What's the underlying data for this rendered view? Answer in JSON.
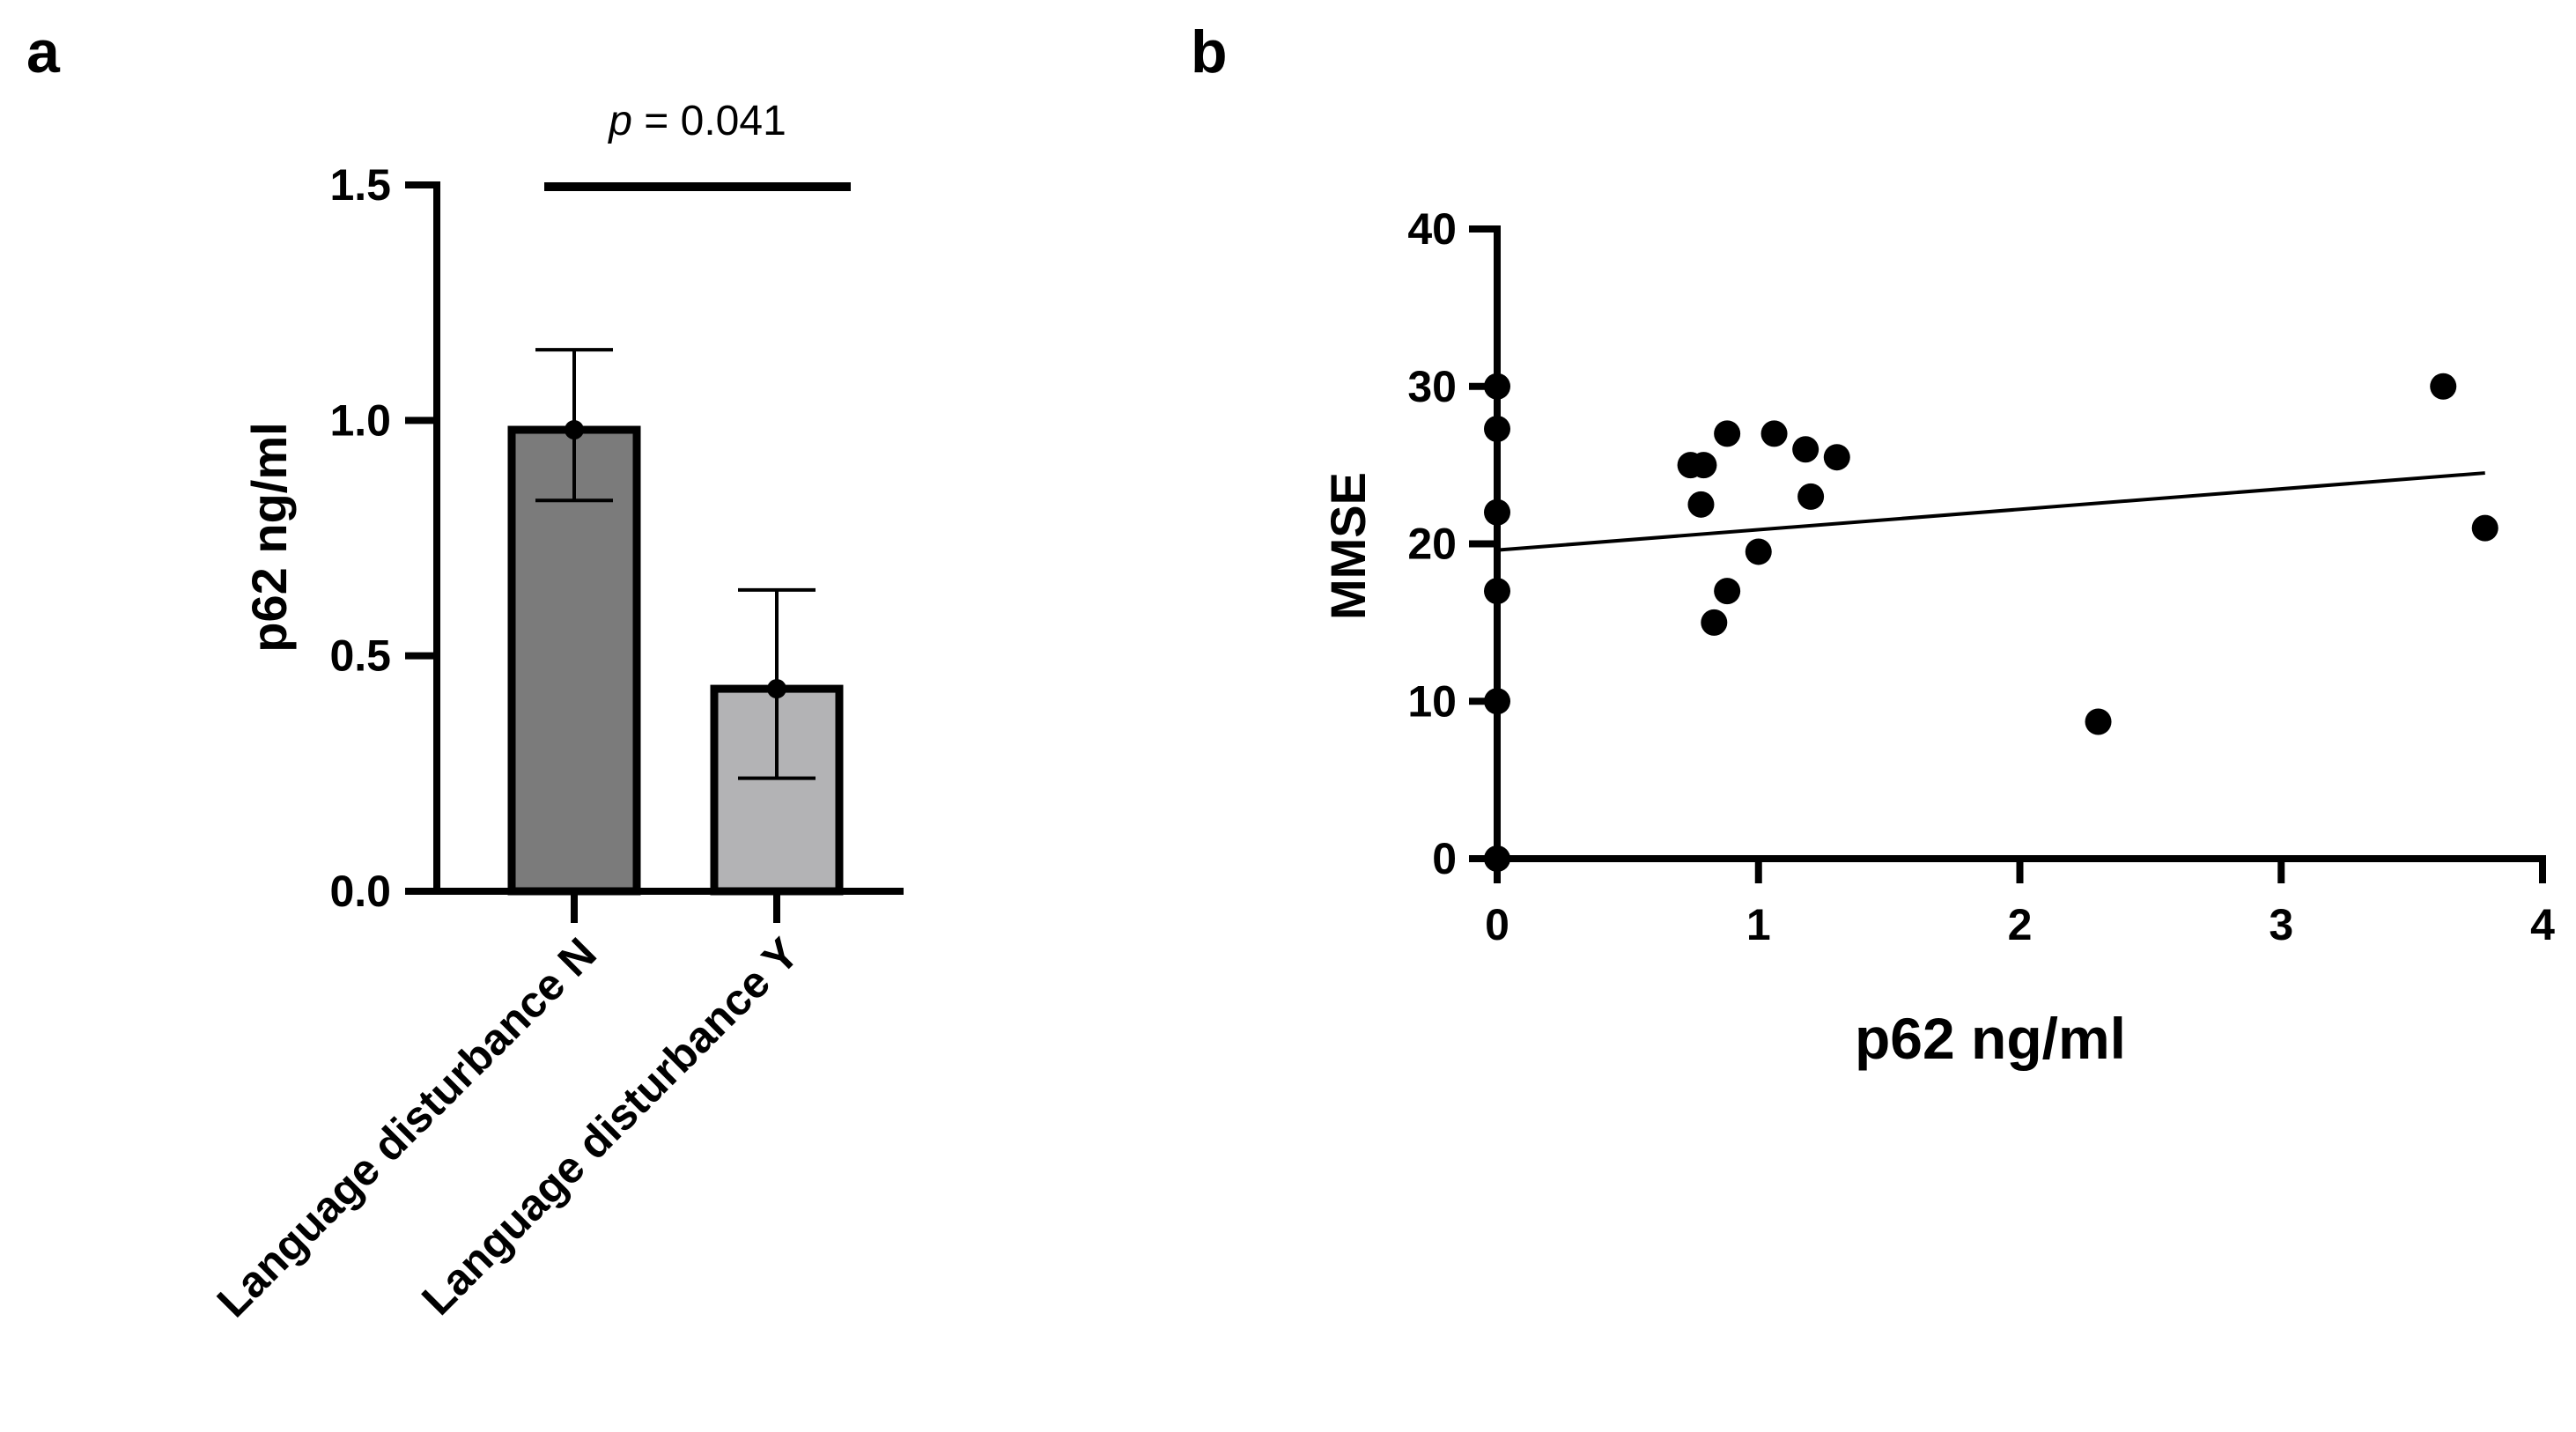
{
  "chart_data": [
    {
      "panel": "a",
      "type": "bar",
      "title": "",
      "xlabel": "",
      "ylabel": "p62 ng/ml",
      "ylim": [
        0,
        1.5
      ],
      "yticks": [
        0.0,
        0.5,
        1.0,
        1.5
      ],
      "ytick_labels": [
        "0.0",
        "0.5",
        "1.0",
        "1.5"
      ],
      "categories": [
        "Language disturbance N",
        "Language disturbance Y"
      ],
      "values": [
        0.98,
        0.43
      ],
      "errors": [
        {
          "low": 0.83,
          "high": 1.15
        },
        {
          "low": 0.24,
          "high": 0.64
        }
      ],
      "colors": [
        "#7b7b7b",
        "#b3b3b5"
      ],
      "annotation": {
        "label": "p",
        "text": " = 0.041"
      }
    },
    {
      "panel": "b",
      "type": "scatter",
      "title": "",
      "xlabel": "p62 ng/ml",
      "ylabel": "MMSE",
      "xlim": [
        0,
        4
      ],
      "ylim": [
        0,
        40
      ],
      "xticks": [
        0,
        1,
        2,
        3,
        4
      ],
      "xtick_labels": [
        "0",
        "1",
        "2",
        "3",
        "4"
      ],
      "yticks": [
        0,
        10,
        20,
        30,
        40
      ],
      "ytick_labels": [
        "0",
        "10",
        "20",
        "30",
        "40"
      ],
      "points": [
        {
          "x": 0.0,
          "y": 30
        },
        {
          "x": 0.0,
          "y": 27.3
        },
        {
          "x": 0.0,
          "y": 22
        },
        {
          "x": 0.0,
          "y": 17
        },
        {
          "x": 0.0,
          "y": 10
        },
        {
          "x": 0.0,
          "y": 0
        },
        {
          "x": 0.74,
          "y": 25
        },
        {
          "x": 0.79,
          "y": 25
        },
        {
          "x": 0.78,
          "y": 22.5
        },
        {
          "x": 0.88,
          "y": 27
        },
        {
          "x": 0.83,
          "y": 15
        },
        {
          "x": 0.88,
          "y": 17
        },
        {
          "x": 1.0,
          "y": 19.5
        },
        {
          "x": 1.06,
          "y": 27
        },
        {
          "x": 1.18,
          "y": 26
        },
        {
          "x": 1.2,
          "y": 23
        },
        {
          "x": 1.3,
          "y": 25.5
        },
        {
          "x": 2.3,
          "y": 8.7
        },
        {
          "x": 3.62,
          "y": 30
        },
        {
          "x": 3.78,
          "y": 21
        }
      ],
      "regression_line": {
        "x": [
          0,
          3.78
        ],
        "y": [
          19.6,
          24.5
        ]
      }
    }
  ]
}
